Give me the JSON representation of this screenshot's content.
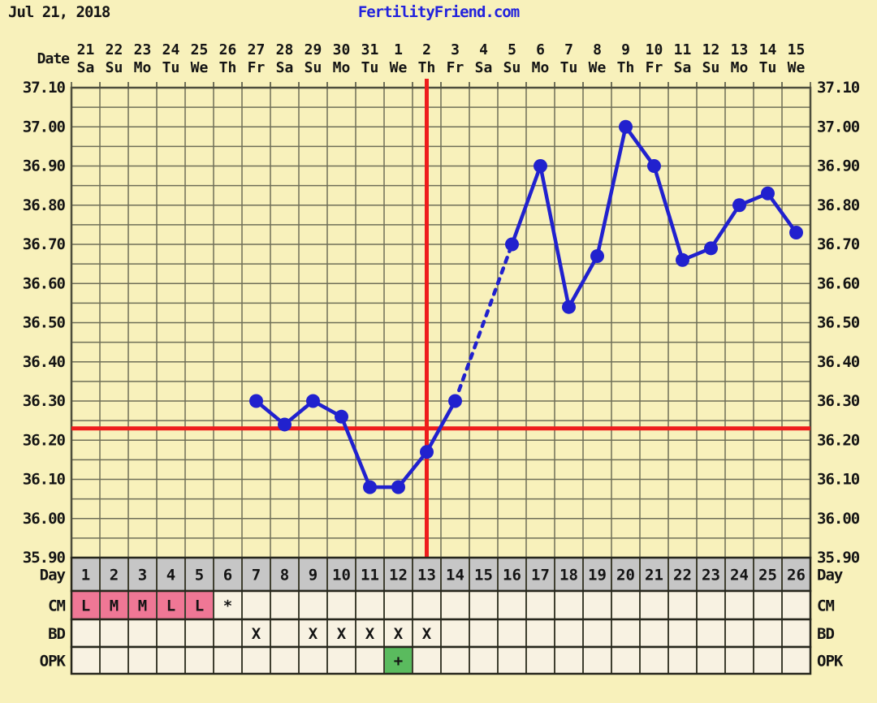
{
  "header": {
    "date": "Jul 21, 2018",
    "site": "FertilityFriend.com"
  },
  "labels": {
    "date_axis": "Date",
    "day_row": "Day",
    "cm_row": "CM",
    "bd_row": "BD",
    "opk_row": "OPK"
  },
  "chart_data": {
    "type": "line",
    "title": "FertilityFriend.com",
    "date_shown": "Jul 21, 2018",
    "x_dates": [
      "21",
      "22",
      "23",
      "24",
      "25",
      "26",
      "27",
      "28",
      "29",
      "30",
      "31",
      "1",
      "2",
      "3",
      "4",
      "5",
      "6",
      "7",
      "8",
      "9",
      "10",
      "11",
      "12",
      "13",
      "14",
      "15"
    ],
    "x_weekdays": [
      "Sa",
      "Su",
      "Mo",
      "Tu",
      "We",
      "Th",
      "Fr",
      "Sa",
      "Su",
      "Mo",
      "Tu",
      "We",
      "Th",
      "Fr",
      "Sa",
      "Su",
      "Mo",
      "Tu",
      "We",
      "Th",
      "Fr",
      "Sa",
      "Su",
      "Mo",
      "Tu",
      "We"
    ],
    "cycle_days": [
      1,
      2,
      3,
      4,
      5,
      6,
      7,
      8,
      9,
      10,
      11,
      12,
      13,
      14,
      15,
      16,
      17,
      18,
      19,
      20,
      21,
      22,
      23,
      24,
      25,
      26
    ],
    "temps_celsius": [
      null,
      null,
      null,
      null,
      null,
      null,
      36.3,
      36.24,
      36.3,
      36.26,
      36.08,
      36.08,
      36.17,
      36.3,
      null,
      36.7,
      36.9,
      36.54,
      36.67,
      37.0,
      36.9,
      36.66,
      36.69,
      36.8,
      36.83,
      36.73
    ],
    "missing_temp_days": [
      1,
      2,
      3,
      4,
      5,
      6,
      15
    ],
    "dashed_gap_note": "segment across missing day 15 drawn dashed",
    "coverline_temp": 36.23,
    "ovulation_line_day": 13,
    "ylim": [
      35.9,
      37.1
    ],
    "y_major_step": 0.1,
    "y_minor_step": 0.05,
    "y_tick_labels": [
      "37.10",
      "37.00",
      "36.90",
      "36.80",
      "36.70",
      "36.60",
      "36.50",
      "36.40",
      "36.30",
      "36.20",
      "36.10",
      "36.00",
      "35.90"
    ],
    "grid": "on",
    "cm_values": [
      "L",
      "M",
      "M",
      "L",
      "L",
      "*",
      "",
      "",
      "",
      "",
      "",
      "",
      "",
      "",
      "",
      "",
      "",
      "",
      "",
      "",
      "",
      "",
      "",
      "",
      "",
      ""
    ],
    "cm_highlight_days": [
      1,
      2,
      3,
      4,
      5
    ],
    "bd_values": [
      "",
      "",
      "",
      "",
      "",
      "",
      "X",
      "",
      "X",
      "X",
      "X",
      "X",
      "X",
      "",
      "",
      "",
      "",
      "",
      "",
      "",
      "",
      "",
      "",
      "",
      "",
      ""
    ],
    "opk_values": [
      "",
      "",
      "",
      "",
      "",
      "",
      "",
      "",
      "",
      "",
      "",
      "+",
      "",
      "",
      "",
      "",
      "",
      "",
      "",
      "",
      "",
      "",
      "",
      "",
      "",
      ""
    ],
    "opk_positive_days": [
      12
    ]
  },
  "colors": {
    "background": "#f8f1bb",
    "grid_line": "#6f6f58",
    "plot_border": "#4d4d3c",
    "temp_line_blue": "#2121ce",
    "signal_red": "#ee1c1c",
    "title_blue": "#2222dd",
    "day_row_gray": "#c6c6c6",
    "empty_cell_cream": "#f8f2e2",
    "cm_pink": "#ef7795",
    "opk_green": "#5abb5e",
    "text_black": "#141414"
  }
}
